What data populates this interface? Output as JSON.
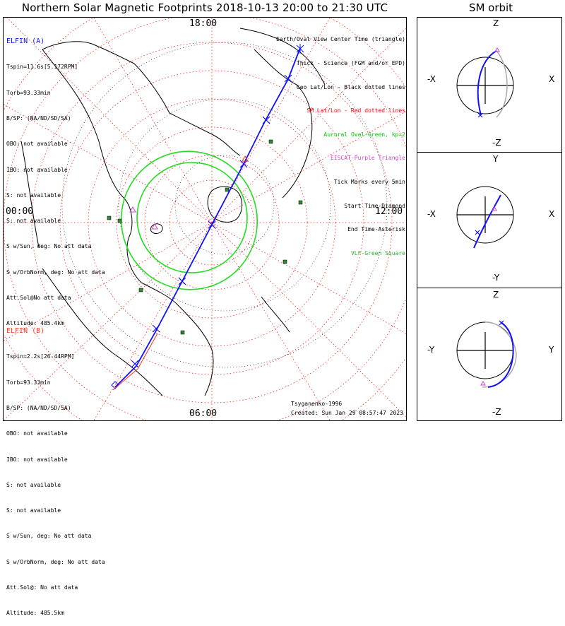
{
  "title": "Northern Solar Magnetic Footprints 2018-10-13 20:00 to 21:30 UTC",
  "sm_title": "SM orbit",
  "elfin_a": {
    "name": "ELFIN (A)",
    "color": "#1010ff",
    "lines": [
      "Tspin=11.6s[5.172RPM]",
      "Torb=93.33min",
      "B/SP: (NA/ND/SD/SA)",
      "OBO: not available",
      "IBO: not available",
      "S: not available",
      "S: not available",
      "S w/Sun, deg: No att data",
      "S w/OrbNorm, deg: No att data",
      "Att.Sol@No att data",
      "Altitude: 485.4km"
    ]
  },
  "elfin_b": {
    "name": "ELFIN (B)",
    "color": "#ff4020",
    "lines": [
      "Tspin=2.2s[26.44RPM]",
      "Torb=93.33min",
      "B/SP: (NA/ND/SD/SA)",
      "OBO: not available",
      "IBO: not available",
      "S: not available",
      "S: not available",
      "S w/Sun, deg: No att data",
      "S w/OrbNorm, deg: No att data",
      "Att.Sol@: No att data",
      "Altitude: 485.5km"
    ]
  },
  "legend": [
    {
      "text": "Earth/Oval View Center Time (triangle)",
      "color": "#000000"
    },
    {
      "text": "Thick - Science (FGM and/or EPD)",
      "color": "#000000"
    },
    {
      "text": "Geo Lat/Lon - Black dotted lines",
      "color": "#000000"
    },
    {
      "text": "SM Lat/Lon - Red dotted lines",
      "color": "#ff0000"
    },
    {
      "text": "Auroral Oval-Green, kp=2",
      "color": "#00cc00"
    },
    {
      "text": "EISCAT-Purple Triangle",
      "color": "#cc44cc"
    },
    {
      "text": "Tick Marks every 5min",
      "color": "#000000"
    },
    {
      "text": "Start Time-Diamond",
      "color": "#000000"
    },
    {
      "text": "End Time-Asterisk",
      "color": "#000000"
    },
    {
      "text": "VLF-Green Square",
      "color": "#33aa33"
    }
  ],
  "map_labels": {
    "top": "18:00",
    "left": "00:00",
    "right": "12:00",
    "bottom": "06:00"
  },
  "credits": {
    "author": "Tsyganenko-1996",
    "created": "Created: Sun Jan 29 08:57:47 2023"
  },
  "sm_panels": [
    {
      "top": "Z",
      "bottom": "-Z",
      "left": "-X",
      "right": "X"
    },
    {
      "top": "Y",
      "bottom": "-Y",
      "left": "-X",
      "right": "X"
    },
    {
      "top": "Z",
      "bottom": "-Z",
      "left": "-Y",
      "right": "Y"
    }
  ]
}
